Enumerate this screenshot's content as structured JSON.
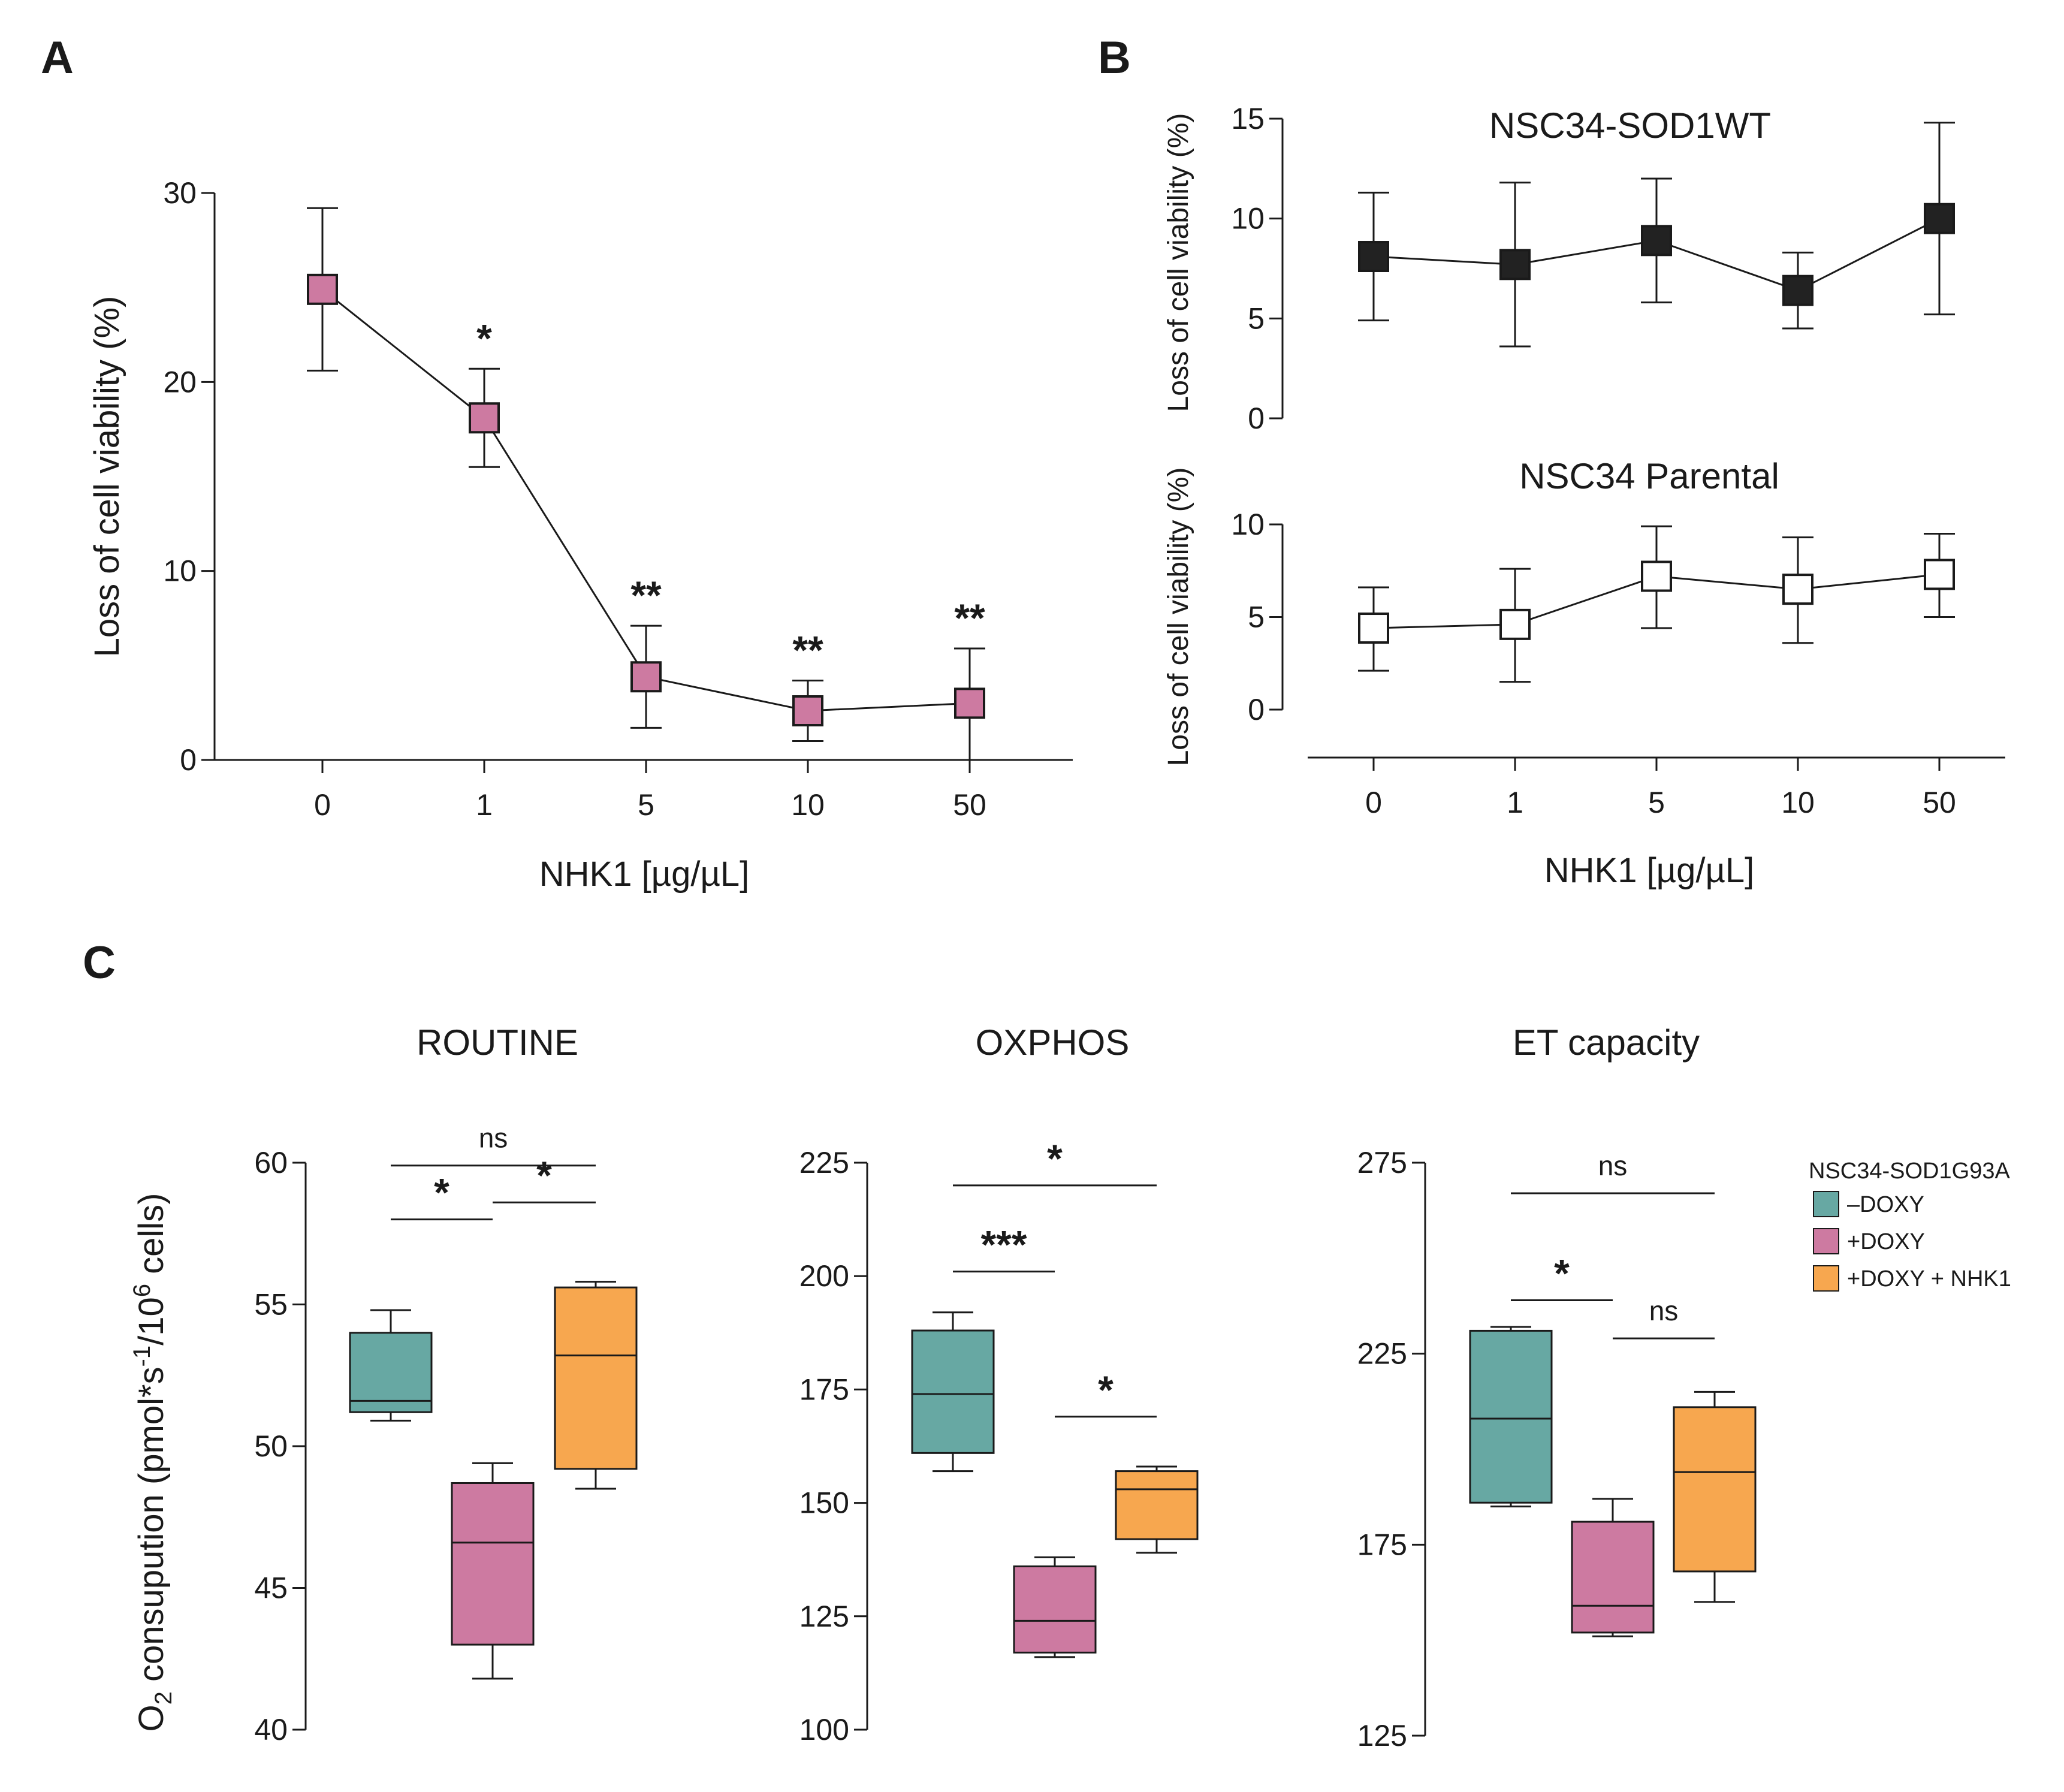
{
  "colors": {
    "ink": "#1a1a1a",
    "pink": "#cd7aa1",
    "teal": "#67a8a3",
    "orange": "#f7a74f",
    "black_marker": "#222222",
    "white_marker": "#ffffff"
  },
  "panel_labels": {
    "a": "A",
    "b": "B",
    "c": "C"
  },
  "chart_data": [
    {
      "id": "A",
      "type": "line",
      "categories": [
        "0",
        "1",
        "5",
        "10",
        "50"
      ],
      "values": [
        24.9,
        18.1,
        4.4,
        2.6,
        3.0
      ],
      "err_low": [
        20.6,
        15.5,
        1.7,
        1.0,
        0.0
      ],
      "err_high": [
        29.2,
        20.7,
        7.1,
        4.2,
        5.9
      ],
      "annotations": [
        "",
        "*",
        "**",
        "**",
        "**"
      ],
      "xlabel": "NHK1 [µg/µL]",
      "ylabel": "Loss of cell viability (%)",
      "ylim": [
        0,
        30
      ],
      "yticks": [
        "0",
        "10",
        "20",
        "30"
      ],
      "marker_color": "#cd7aa1"
    },
    {
      "id": "B-top",
      "type": "line",
      "title": "NSC34-SOD1WT",
      "categories": [
        "0",
        "1",
        "5",
        "10",
        "50"
      ],
      "values": [
        8.1,
        7.7,
        8.9,
        6.4,
        10.0
      ],
      "err_low": [
        4.9,
        3.6,
        5.8,
        4.5,
        5.2
      ],
      "err_high": [
        11.3,
        11.8,
        12.0,
        8.3,
        14.8
      ],
      "ylabel": "Loss of cell viability (%)",
      "ylim": [
        0,
        15
      ],
      "yticks": [
        "0",
        "5",
        "10",
        "15"
      ],
      "marker_color": "#222222"
    },
    {
      "id": "B-bottom",
      "type": "line",
      "title": "NSC34 Parental",
      "categories": [
        "0",
        "1",
        "5",
        "10",
        "50"
      ],
      "values": [
        4.4,
        4.6,
        7.2,
        6.5,
        7.3
      ],
      "err_low": [
        2.1,
        1.5,
        4.4,
        3.6,
        5.0
      ],
      "err_high": [
        6.6,
        7.6,
        9.9,
        9.3,
        9.5
      ],
      "xlabel": "NHK1 [µg/µL]",
      "ylabel": "Loss of cell viability (%)",
      "ylim": [
        0,
        10
      ],
      "yticks": [
        "0",
        "5",
        "10"
      ],
      "marker_color": "#ffffff"
    },
    {
      "id": "C-ROUTINE",
      "type": "box",
      "title": "ROUTINE",
      "ylim": [
        40,
        60
      ],
      "yticks": [
        "40",
        "45",
        "50",
        "55",
        "60"
      ],
      "groups": [
        {
          "name": "–DOXY",
          "min": 50.9,
          "q1": 51.2,
          "median": 51.6,
          "q3": 54.0,
          "max": 54.8
        },
        {
          "name": "+DOXY",
          "min": 41.8,
          "q1": 43.0,
          "median": 46.6,
          "q3": 48.7,
          "max": 49.4
        },
        {
          "name": "+DOXY + NHK1",
          "min": 48.5,
          "q1": 49.2,
          "median": 53.2,
          "q3": 55.6,
          "max": 55.8
        }
      ],
      "comparisons": [
        {
          "from": 0,
          "to": 1,
          "y": 58.0,
          "label": "*"
        },
        {
          "from": 1,
          "to": 2,
          "y": 58.6,
          "label": "*"
        },
        {
          "from": 0,
          "to": 2,
          "y": 59.9,
          "label": "ns"
        }
      ]
    },
    {
      "id": "C-OXPHOS",
      "type": "box",
      "title": "OXPHOS",
      "ylim": [
        100,
        225
      ],
      "yticks": [
        "100",
        "125",
        "150",
        "175",
        "200",
        "225"
      ],
      "groups": [
        {
          "name": "–DOXY",
          "min": 157,
          "q1": 161,
          "median": 174,
          "q3": 188,
          "max": 192
        },
        {
          "name": "+DOXY",
          "min": 116,
          "q1": 117,
          "median": 124,
          "q3": 136,
          "max": 138
        },
        {
          "name": "+DOXY + NHK1",
          "min": 139,
          "q1": 142,
          "median": 153,
          "q3": 157,
          "max": 158
        }
      ],
      "comparisons": [
        {
          "from": 0,
          "to": 1,
          "y": 201,
          "label": "***"
        },
        {
          "from": 1,
          "to": 2,
          "y": 169,
          "label": "*"
        },
        {
          "from": 0,
          "to": 2,
          "y": 220,
          "label": "*"
        }
      ]
    },
    {
      "id": "C-ET",
      "type": "box",
      "title": "ET capacity",
      "ylim": [
        125,
        275
      ],
      "yticks": [
        "125",
        "175",
        "225",
        "275"
      ],
      "groups": [
        {
          "name": "–DOXY",
          "min": 185,
          "q1": 186,
          "median": 208,
          "q3": 231,
          "max": 232
        },
        {
          "name": "+DOXY",
          "min": 151,
          "q1": 152,
          "median": 159,
          "q3": 181,
          "max": 187
        },
        {
          "name": "+DOXY + NHK1",
          "min": 160,
          "q1": 168,
          "median": 194,
          "q3": 211,
          "max": 215
        }
      ],
      "comparisons": [
        {
          "from": 0,
          "to": 1,
          "y": 239,
          "label": "*"
        },
        {
          "from": 1,
          "to": 2,
          "y": 229,
          "label": "ns"
        },
        {
          "from": 0,
          "to": 2,
          "y": 267,
          "label": "ns"
        }
      ]
    }
  ],
  "panel_c": {
    "ylabel_main": "O",
    "ylabel_sub": "2",
    "ylabel_rest": " consupution (pmol*s",
    "ylabel_sup1": "-1",
    "ylabel_mid": "/10",
    "ylabel_sup2": "6",
    "ylabel_end": " cells)"
  },
  "legend": {
    "title": "NSC34-SOD1G93A",
    "items": [
      {
        "label": "–DOXY",
        "color": "#67a8a3"
      },
      {
        "label": "+DOXY",
        "color": "#cd7aa1"
      },
      {
        "label": "+DOXY + NHK1",
        "color": "#f7a74f"
      }
    ]
  }
}
